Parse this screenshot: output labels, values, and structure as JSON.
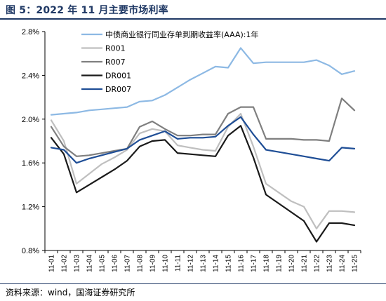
{
  "title": "图 5：2022 年 11 月主要市场利率",
  "source": "资料来源：wind，国海证券研究所",
  "chart_data": {
    "type": "line",
    "ylim": [
      0.008,
      0.028
    ],
    "yticks": [
      "2.8%",
      "2.4%",
      "2.0%",
      "1.6%",
      "1.2%",
      "0.8%"
    ],
    "ytick_values": [
      0.028,
      0.024,
      0.02,
      0.016,
      0.012,
      0.008
    ],
    "x": [
      "11-01",
      "11-02",
      "11-03",
      "11-04",
      "11-05",
      "11-06",
      "11-07",
      "11-08",
      "11-09",
      "11-10",
      "11-11",
      "11-12",
      "11-13",
      "11-14",
      "11-15",
      "11-16",
      "11-17",
      "11-18",
      "11-19",
      "11-20",
      "11-21",
      "11-22",
      "11-23",
      "11-24",
      "11-25"
    ],
    "grid": false,
    "legend_position": "top-left",
    "series": [
      {
        "name": "中债商业银行同业存单到期收益率(AAA):1年",
        "color": "#8db9e4",
        "width": 2.2,
        "values": [
          0.0204,
          0.0205,
          0.0206,
          0.0208,
          0.0209,
          0.021,
          0.0211,
          0.0216,
          0.0217,
          0.0222,
          0.0229,
          0.0236,
          0.0242,
          0.0248,
          0.0247,
          0.0265,
          0.0251,
          0.0252,
          0.0252,
          0.0252,
          0.0252,
          0.0254,
          0.0249,
          0.0241,
          0.0244
        ]
      },
      {
        "name": "R001",
        "color": "#bfbfbf",
        "width": 2.2,
        "values": [
          0.0199,
          0.018,
          0.0141,
          0.015,
          0.0159,
          0.0165,
          0.0172,
          0.0187,
          0.0191,
          0.0189,
          0.0176,
          0.0174,
          0.0172,
          0.0171,
          0.0193,
          0.0205,
          0.0175,
          0.0141,
          0.0133,
          0.0125,
          0.012,
          0.01,
          0.0116,
          0.0116,
          0.0115
        ]
      },
      {
        "name": "R007",
        "color": "#7f7f7f",
        "width": 2.2,
        "values": [
          0.0193,
          0.0175,
          0.0166,
          0.0167,
          0.0169,
          0.0171,
          0.0173,
          0.0193,
          0.0198,
          0.0191,
          0.0185,
          0.0185,
          0.0186,
          0.0186,
          0.0205,
          0.0211,
          0.0211,
          0.0182,
          0.0182,
          0.0182,
          0.0181,
          0.0181,
          0.018,
          0.0219,
          0.0208
        ]
      },
      {
        "name": "DR001",
        "color": "#1a1a1a",
        "width": 2.2,
        "values": [
          0.0183,
          0.0168,
          0.0133,
          0.014,
          0.0147,
          0.0154,
          0.0162,
          0.0175,
          0.018,
          0.0181,
          0.0169,
          0.0168,
          0.0167,
          0.0166,
          0.0185,
          0.0194,
          0.0165,
          0.0131,
          0.0123,
          0.0115,
          0.0107,
          0.0088,
          0.0105,
          0.0105,
          0.0103
        ]
      },
      {
        "name": "DR007",
        "color": "#1f4e96",
        "width": 2.2,
        "values": [
          0.0174,
          0.0172,
          0.016,
          0.0164,
          0.0167,
          0.017,
          0.0173,
          0.0181,
          0.0185,
          0.0189,
          0.0182,
          0.0183,
          0.0183,
          0.0184,
          0.0194,
          0.0202,
          0.0186,
          0.0172,
          0.017,
          0.0168,
          0.0166,
          0.0164,
          0.0162,
          0.0174,
          0.0173
        ]
      }
    ]
  }
}
